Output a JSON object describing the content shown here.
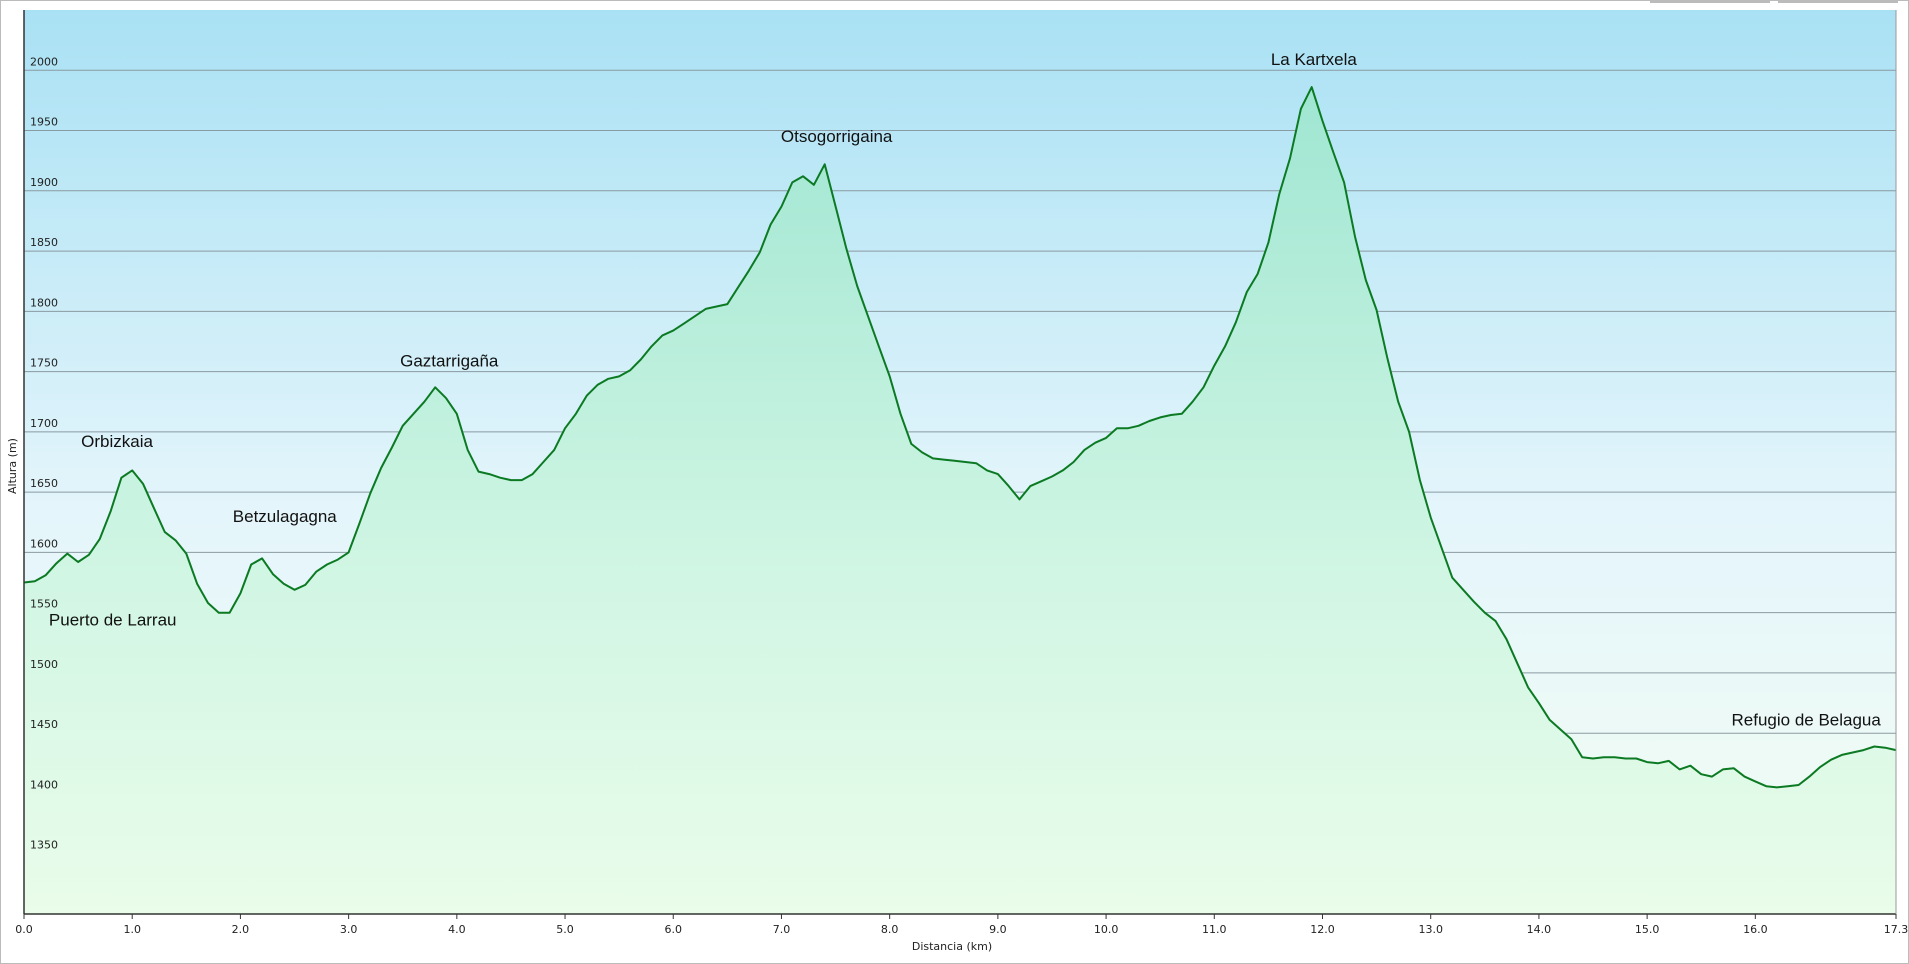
{
  "chart_data": {
    "type": "area",
    "xlabel": "Distancia  (km)",
    "ylabel": "Altura (m)",
    "xlim": [
      0,
      17.3
    ],
    "ylim": [
      1300,
      2050
    ],
    "xticks": [
      {
        "value": 0,
        "label": "0.0"
      },
      {
        "value": 1,
        "label": "1.0"
      },
      {
        "value": 2,
        "label": "2.0"
      },
      {
        "value": 3,
        "label": "3.0"
      },
      {
        "value": 4,
        "label": "4.0"
      },
      {
        "value": 5,
        "label": "5.0"
      },
      {
        "value": 6,
        "label": "6.0"
      },
      {
        "value": 7,
        "label": "7.0"
      },
      {
        "value": 8,
        "label": "8.0"
      },
      {
        "value": 9,
        "label": "9.0"
      },
      {
        "value": 10,
        "label": "10.0"
      },
      {
        "value": 11,
        "label": "11.0"
      },
      {
        "value": 12,
        "label": "12.0"
      },
      {
        "value": 13,
        "label": "13.0"
      },
      {
        "value": 14,
        "label": "14.0"
      },
      {
        "value": 15,
        "label": "15.0"
      },
      {
        "value": 16,
        "label": "16.0"
      },
      {
        "value": 17.3,
        "label": "17.3"
      }
    ],
    "yticks": [
      1350,
      1400,
      1450,
      1500,
      1550,
      1600,
      1650,
      1700,
      1750,
      1800,
      1850,
      1900,
      1950,
      2000
    ],
    "grid": true,
    "color": "#0b7a22",
    "x": [
      0,
      0.1,
      0.2,
      0.3,
      0.4,
      0.5,
      0.6,
      0.7,
      0.8,
      0.9,
      1,
      1.1,
      1.2,
      1.3,
      1.4,
      1.5,
      1.6,
      1.7,
      1.8,
      1.9,
      2,
      2.1,
      2.2,
      2.3,
      2.4,
      2.5,
      2.6,
      2.7,
      2.8,
      2.9,
      3,
      3.1,
      3.2,
      3.3,
      3.4,
      3.5,
      3.6,
      3.7,
      3.8,
      3.9,
      4,
      4.1,
      4.2,
      4.3,
      4.4,
      4.5,
      4.6,
      4.7,
      4.8,
      4.9,
      5,
      5.1,
      5.2,
      5.3,
      5.4,
      5.5,
      5.6,
      5.7,
      5.8,
      5.9,
      6,
      6.1,
      6.2,
      6.3,
      6.4,
      6.5,
      6.6,
      6.7,
      6.8,
      6.9,
      7,
      7.1,
      7.2,
      7.3,
      7.4,
      7.5,
      7.6,
      7.7,
      7.8,
      7.9,
      8,
      8.1,
      8.2,
      8.3,
      8.4,
      8.5,
      8.6,
      8.7,
      8.8,
      8.9,
      9,
      9.1,
      9.2,
      9.3,
      9.4,
      9.5,
      9.6,
      9.7,
      9.8,
      9.9,
      10,
      10.1,
      10.2,
      10.3,
      10.4,
      10.5,
      10.6,
      10.7,
      10.8,
      10.9,
      11,
      11.1,
      11.2,
      11.3,
      11.4,
      11.5,
      11.6,
      11.7,
      11.8,
      11.9,
      12,
      12.1,
      12.2,
      12.3,
      12.4,
      12.5,
      12.6,
      12.7,
      12.8,
      12.9,
      13,
      13.1,
      13.2,
      13.3,
      13.4,
      13.5,
      13.6,
      13.7,
      13.8,
      13.9,
      14,
      14.1,
      14.2,
      14.3,
      14.4,
      14.5,
      14.6,
      14.7,
      14.8,
      14.9,
      15,
      15.1,
      15.2,
      15.3,
      15.4,
      15.5,
      15.6,
      15.7,
      15.8,
      15.9,
      16,
      16.1,
      16.2,
      16.3,
      16.4,
      16.5,
      16.6,
      16.7,
      16.8,
      16.9,
      17,
      17.1,
      17.2,
      17.3
    ],
    "values": [
      1575,
      1576,
      1581,
      1591,
      1599,
      1592,
      1598,
      1611,
      1634,
      1662,
      1668,
      1657,
      1637,
      1617,
      1610,
      1599,
      1574,
      1558,
      1550,
      1550,
      1566,
      1590,
      1595,
      1582,
      1574,
      1569,
      1573,
      1584,
      1590,
      1594,
      1600,
      1624,
      1649,
      1670,
      1687,
      1705,
      1715,
      1725,
      1737,
      1728,
      1715,
      1685,
      1667,
      1665,
      1662,
      1660,
      1660,
      1665,
      1675,
      1685,
      1703,
      1715,
      1730,
      1739,
      1744,
      1746,
      1751,
      1760,
      1771,
      1780,
      1784,
      1790,
      1796,
      1802,
      1804,
      1806,
      1820,
      1834,
      1849,
      1872,
      1887,
      1907,
      1912,
      1905,
      1922,
      1887,
      1852,
      1821,
      1796,
      1771,
      1746,
      1715,
      1690,
      1683,
      1678,
      1677,
      1676,
      1675,
      1674,
      1668,
      1665,
      1655,
      1644,
      1655,
      1659,
      1663,
      1668,
      1675,
      1685,
      1691,
      1695,
      1703,
      1703,
      1705,
      1709,
      1712,
      1714,
      1715,
      1725,
      1737,
      1755,
      1771,
      1791,
      1816,
      1831,
      1857,
      1897,
      1927,
      1968,
      1986,
      1958,
      1932,
      1907,
      1862,
      1826,
      1801,
      1761,
      1725,
      1700,
      1660,
      1629,
      1604,
      1579,
      1569,
      1559,
      1550,
      1543,
      1528,
      1508,
      1488,
      1475,
      1461,
      1453,
      1445,
      1430,
      1429,
      1430,
      1430,
      1429,
      1429,
      1426,
      1425,
      1427,
      1420,
      1423,
      1416,
      1414,
      1420,
      1421,
      1414,
      1410,
      1406,
      1405,
      1406,
      1407,
      1414,
      1422,
      1428,
      1432,
      1434,
      1436,
      1439,
      1438,
      1436
    ],
    "annotations": [
      {
        "text": "Orbizkaia",
        "x": 0.86,
        "y": 1691
      },
      {
        "text": "Puerto de Larrau",
        "x": 0.82,
        "y": 1543
      },
      {
        "text": "Betzulagagna",
        "x": 2.41,
        "y": 1629
      },
      {
        "text": "Gaztarrigaña",
        "x": 3.93,
        "y": 1758
      },
      {
        "text": "Otsogorrigaina",
        "x": 7.51,
        "y": 1944
      },
      {
        "text": "La Kartxela",
        "x": 11.92,
        "y": 2008
      },
      {
        "text": "Refugio de Belagua",
        "x": 16.47,
        "y": 1460
      }
    ]
  }
}
